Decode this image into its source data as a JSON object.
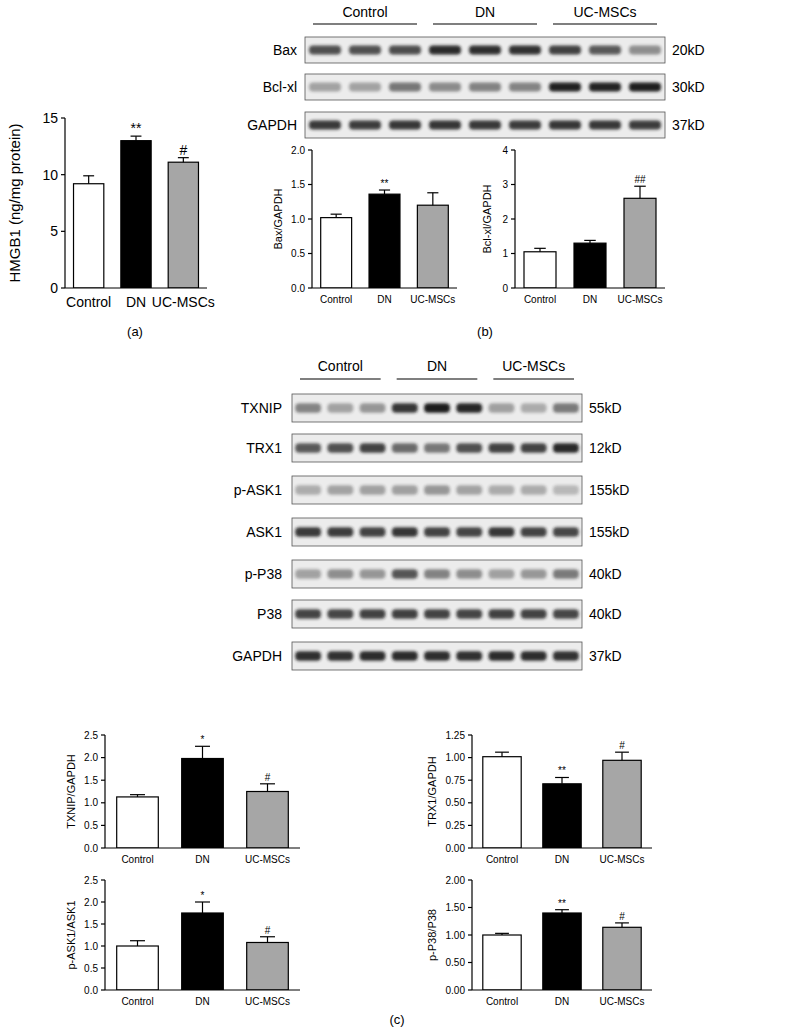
{
  "chart_data": [
    {
      "type": "bar",
      "ylabel": "HMGB1 (ng/mg protein)",
      "categories": [
        "Control",
        "DN",
        "UC-MSCs"
      ],
      "values": [
        9.2,
        13.0,
        11.1
      ],
      "errors": [
        0.7,
        0.4,
        0.4
      ],
      "significance": [
        null,
        "**",
        "#"
      ],
      "colors": [
        "#ffffff",
        "#000000",
        "#a6a6a6"
      ],
      "ylim": [
        0,
        15
      ],
      "yticks": [
        0,
        5,
        10,
        15
      ]
    },
    {
      "type": "bar",
      "ylabel": "Bax/GAPDH",
      "categories": [
        "Control",
        "DN",
        "UC-MSCs"
      ],
      "values": [
        1.02,
        1.36,
        1.2
      ],
      "errors": [
        0.05,
        0.06,
        0.18
      ],
      "significance": [
        null,
        "**",
        null
      ],
      "colors": [
        "#ffffff",
        "#000000",
        "#a6a6a6"
      ],
      "ylim": [
        0,
        2
      ],
      "yticks": [
        {
          "value": 0,
          "label": "0.0"
        },
        {
          "value": 0.5,
          "label": "0.5"
        },
        {
          "value": 1,
          "label": "1.0"
        },
        {
          "value": 1.5,
          "label": "1.5"
        },
        {
          "value": 2,
          "label": "2.0"
        }
      ]
    },
    {
      "type": "bar",
      "ylabel": "Bcl-xl/GAPDH",
      "categories": [
        "Control",
        "DN",
        "UC-MSCs"
      ],
      "values": [
        1.05,
        1.3,
        2.6
      ],
      "errors": [
        0.1,
        0.08,
        0.35
      ],
      "significance": [
        null,
        null,
        "##"
      ],
      "colors": [
        "#ffffff",
        "#000000",
        "#a6a6a6"
      ],
      "ylim": [
        0,
        4
      ],
      "yticks": [
        0,
        1,
        2,
        3,
        4
      ]
    },
    {
      "type": "bar",
      "ylabel": "TXNIP/GAPDH",
      "categories": [
        "Control",
        "DN",
        "UC-MSCs"
      ],
      "values": [
        1.13,
        1.98,
        1.25
      ],
      "errors": [
        0.05,
        0.27,
        0.17
      ],
      "significance": [
        null,
        "*",
        "#"
      ],
      "colors": [
        "#ffffff",
        "#000000",
        "#a6a6a6"
      ],
      "ylim": [
        0,
        2.5
      ],
      "yticks": [
        {
          "value": 0,
          "label": "0.0"
        },
        {
          "value": 0.5,
          "label": "0.5"
        },
        {
          "value": 1,
          "label": "1.0"
        },
        {
          "value": 1.5,
          "label": "1.5"
        },
        {
          "value": 2,
          "label": "2.0"
        },
        {
          "value": 2.5,
          "label": "2.5"
        }
      ]
    },
    {
      "type": "bar",
      "ylabel": "TRX1/GAPDH",
      "categories": [
        "Control",
        "DN",
        "UC-MSCs"
      ],
      "values": [
        1.01,
        0.71,
        0.97
      ],
      "errors": [
        0.05,
        0.07,
        0.09
      ],
      "significance": [
        null,
        "**",
        "#"
      ],
      "colors": [
        "#ffffff",
        "#000000",
        "#a6a6a6"
      ],
      "ylim": [
        0,
        1.25
      ],
      "yticks": [
        {
          "value": 0,
          "label": "0.00"
        },
        {
          "value": 0.25,
          "label": "0.25"
        },
        {
          "value": 0.5,
          "label": "0.50"
        },
        {
          "value": 0.75,
          "label": "0.75"
        },
        {
          "value": 1,
          "label": "1.00"
        },
        {
          "value": 1.25,
          "label": "1.25"
        }
      ]
    },
    {
      "type": "bar",
      "ylabel": "p-ASK1/ASK1",
      "categories": [
        "Control",
        "DN",
        "UC-MSCs"
      ],
      "values": [
        1.0,
        1.75,
        1.08
      ],
      "errors": [
        0.12,
        0.25,
        0.13
      ],
      "significance": [
        null,
        "*",
        "#"
      ],
      "colors": [
        "#ffffff",
        "#000000",
        "#a6a6a6"
      ],
      "ylim": [
        0,
        2.5
      ],
      "yticks": [
        {
          "value": 0,
          "label": "0.0"
        },
        {
          "value": 0.5,
          "label": "0.5"
        },
        {
          "value": 1,
          "label": "1.0"
        },
        {
          "value": 1.5,
          "label": "1.5"
        },
        {
          "value": 2,
          "label": "2.0"
        },
        {
          "value": 2.5,
          "label": "2.5"
        }
      ]
    },
    {
      "type": "bar",
      "ylabel": "p-P38/P38",
      "categories": [
        "Control",
        "DN",
        "UC-MSCs"
      ],
      "values": [
        1.0,
        1.4,
        1.14
      ],
      "errors": [
        0.03,
        0.06,
        0.08
      ],
      "significance": [
        null,
        "**",
        "#"
      ],
      "colors": [
        "#ffffff",
        "#000000",
        "#a6a6a6"
      ],
      "ylim": [
        0,
        2
      ],
      "yticks": [
        {
          "value": 0,
          "label": "0.00"
        },
        {
          "value": 0.5,
          "label": "0.50"
        },
        {
          "value": 1,
          "label": "1.00"
        },
        {
          "value": 1.5,
          "label": "1.50"
        },
        {
          "value": 2,
          "label": "2.00"
        }
      ]
    }
  ],
  "blots": [
    {
      "groups": [
        "Control",
        "DN",
        "UC-MSCs"
      ],
      "rows": [
        {
          "protein": "Bax",
          "size": "20kD"
        },
        {
          "protein": "Bcl-xl",
          "size": "30kD"
        },
        {
          "protein": "GAPDH",
          "size": "37kD"
        }
      ]
    },
    {
      "groups": [
        "Control",
        "DN",
        "UC-MSCs"
      ],
      "rows": [
        {
          "protein": "TXNIP",
          "size": "55kD"
        },
        {
          "protein": "TRX1",
          "size": "12kD"
        },
        {
          "protein": "p-ASK1",
          "size": "155kD"
        },
        {
          "protein": "ASK1",
          "size": "155kD"
        },
        {
          "protein": "p-P38",
          "size": "40kD"
        },
        {
          "protein": "P38",
          "size": "40kD"
        },
        {
          "protein": "GAPDH",
          "size": "37kD"
        }
      ]
    }
  ],
  "panels": [
    "(a)",
    "(b)",
    "(c)"
  ]
}
